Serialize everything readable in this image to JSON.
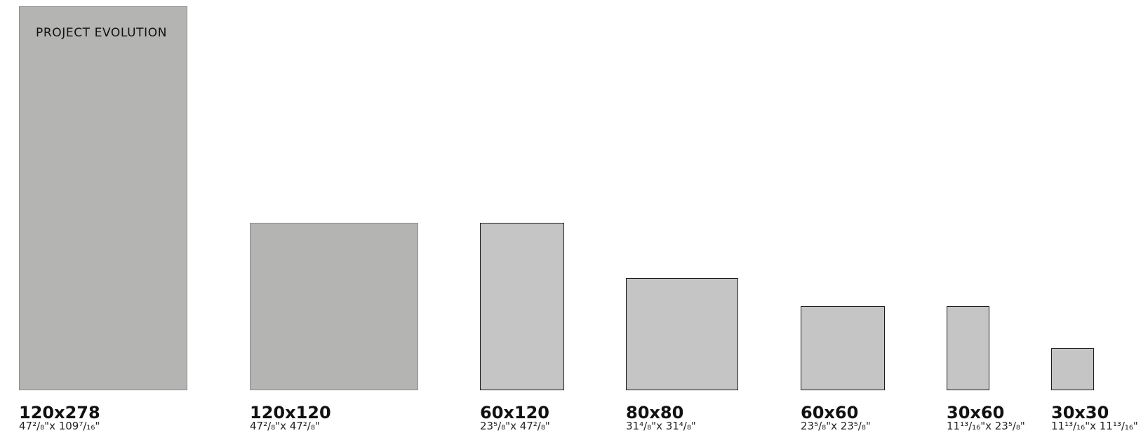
{
  "title": "PROJECT EVOLUTION",
  "colors": {
    "large_fill": "#b4b4b3",
    "small_fill": "#c4c5c4",
    "large_border": "#8b8b8b",
    "small_border": "#1c1c1c"
  },
  "sizes": [
    {
      "label": "120x278",
      "inches": "47²/₈\"x 109⁷/₁₆\""
    },
    {
      "label": "120x120",
      "inches": "47²/₈\"x 47²/₈\""
    },
    {
      "label": "60x120",
      "inches": "23⁵/₈\"x 47²/₈\""
    },
    {
      "label": "80x80",
      "inches": "31⁴/₈\"x 31⁴/₈\""
    },
    {
      "label": "60x60",
      "inches": "23⁵/₈\"x 23⁵/₈\""
    },
    {
      "label": "30x60",
      "inches": "11¹³/₁₆\"x 23⁵/₈\""
    },
    {
      "label": "30x30",
      "inches": "11¹³/₁₆\"x 11¹³/₁₆\""
    }
  ]
}
